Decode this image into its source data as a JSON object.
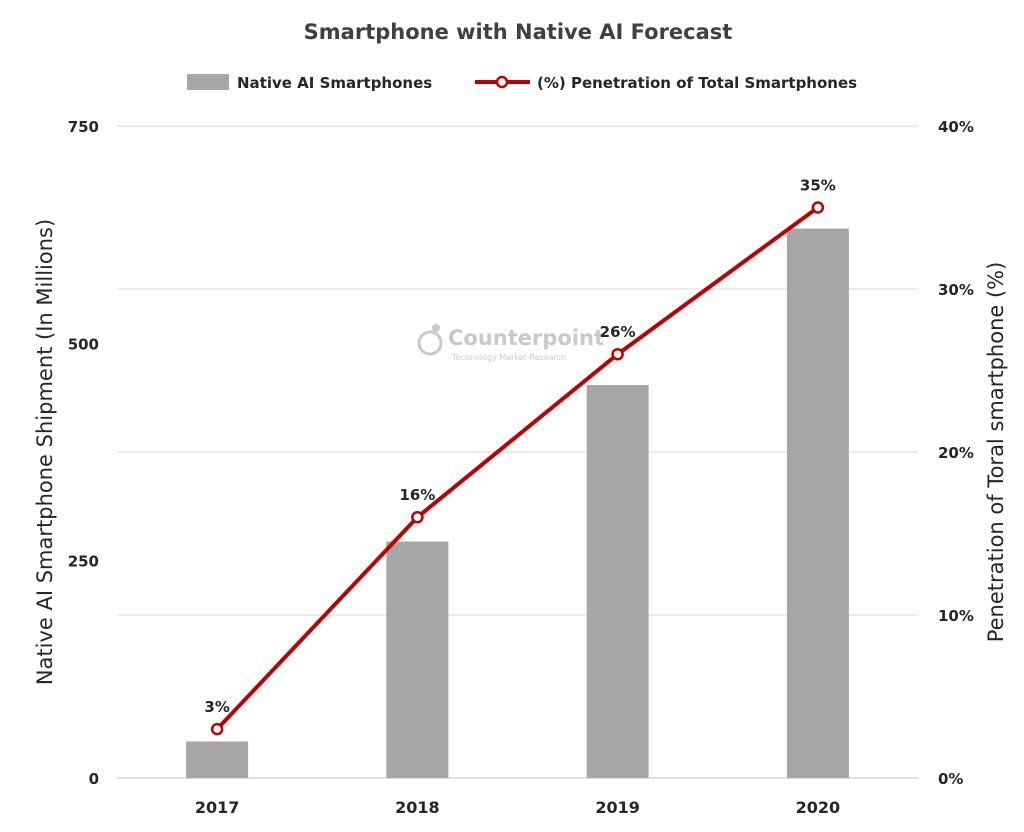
{
  "chart_data": {
    "type": "bar",
    "title": "Smartphone with Native AI Forecast",
    "categories": [
      "2017",
      "2018",
      "2019",
      "2020"
    ],
    "series": [
      {
        "name": "Native AI Smartphones",
        "type": "bar",
        "axis": "left",
        "color": "#a6a6a6",
        "values": [
          42,
          272,
          452,
          632
        ]
      },
      {
        "name": "(%) Penetration of Total Smartphones",
        "type": "line",
        "axis": "right",
        "color": "#c00000",
        "values": [
          3,
          16,
          26,
          35
        ],
        "data_labels": [
          "3%",
          "16%",
          "26%",
          "35%"
        ]
      }
    ],
    "ylabel": "Native AI Smartphone Shipment (In Millions)",
    "ylabel_right": "Penetration of Toral smartphone (%)",
    "ylim": [
      0,
      750
    ],
    "ylim_right": [
      0,
      40
    ],
    "yticks": [
      "0",
      "250",
      "500",
      "750"
    ],
    "yticks_right": [
      "0%",
      "10%",
      "20%",
      "30%",
      "40%"
    ],
    "grid": true,
    "legend_position": "top"
  },
  "watermark": {
    "name": "Counterpoint",
    "tagline": "Technology Market Research"
  }
}
